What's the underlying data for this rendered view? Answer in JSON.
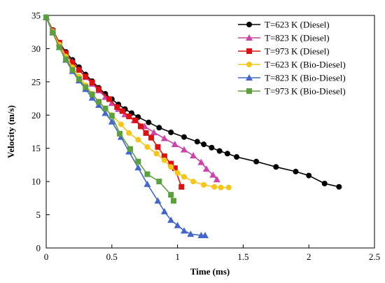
{
  "chart_data": {
    "type": "line",
    "xlabel": "Time (ms)",
    "ylabel": "Velocity (m/s)",
    "xlim": [
      0,
      2.5
    ],
    "ylim": [
      0,
      35
    ],
    "xticks": [
      0,
      0.5,
      1,
      1.5,
      2,
      2.5
    ],
    "xtick_labels": [
      "0",
      "0.5",
      "1",
      "1.5",
      "2",
      "2.5"
    ],
    "yticks": [
      0,
      5,
      10,
      15,
      20,
      25,
      30,
      35
    ],
    "ytick_labels": [
      "0",
      "5",
      "10",
      "15",
      "20",
      "25",
      "30",
      "35"
    ],
    "grid": false,
    "legend_position": "top-right",
    "series": [
      {
        "name": "T=623 K (Diesel)",
        "color": "#000000",
        "marker": "circle",
        "points": [
          [
            0.0,
            34.7
          ],
          [
            0.05,
            32.8
          ],
          [
            0.1,
            30.9
          ],
          [
            0.15,
            29.5
          ],
          [
            0.2,
            28.3
          ],
          [
            0.25,
            27.2
          ],
          [
            0.3,
            26.1
          ],
          [
            0.35,
            25.1
          ],
          [
            0.4,
            24.1
          ],
          [
            0.45,
            23.2
          ],
          [
            0.5,
            22.4
          ],
          [
            0.55,
            21.6
          ],
          [
            0.6,
            20.9
          ],
          [
            0.65,
            20.3
          ],
          [
            0.7,
            19.7
          ],
          [
            0.78,
            18.9
          ],
          [
            0.86,
            18.1
          ],
          [
            0.95,
            17.4
          ],
          [
            1.05,
            16.7
          ],
          [
            1.15,
            16.0
          ],
          [
            1.2,
            15.6
          ],
          [
            1.26,
            15.1
          ],
          [
            1.32,
            14.6
          ],
          [
            1.38,
            14.2
          ],
          [
            1.45,
            13.7
          ],
          [
            1.6,
            13.0
          ],
          [
            1.75,
            12.2
          ],
          [
            1.9,
            11.5
          ],
          [
            2.0,
            10.9
          ],
          [
            2.12,
            9.7
          ],
          [
            2.23,
            9.2
          ]
        ]
      },
      {
        "name": "T=823 K (Diesel)",
        "color": "#cc44aa",
        "marker": "triangle",
        "points": [
          [
            0.0,
            34.7
          ],
          [
            0.05,
            32.7
          ],
          [
            0.1,
            30.8
          ],
          [
            0.15,
            29.3
          ],
          [
            0.2,
            28.0
          ],
          [
            0.25,
            26.8
          ],
          [
            0.3,
            25.7
          ],
          [
            0.35,
            24.7
          ],
          [
            0.4,
            23.7
          ],
          [
            0.45,
            22.7
          ],
          [
            0.5,
            21.8
          ],
          [
            0.55,
            20.9
          ],
          [
            0.6,
            20.1
          ],
          [
            0.67,
            19.2
          ],
          [
            0.75,
            18.3
          ],
          [
            0.82,
            17.4
          ],
          [
            0.9,
            16.5
          ],
          [
            0.98,
            15.6
          ],
          [
            1.05,
            14.8
          ],
          [
            1.12,
            13.9
          ],
          [
            1.18,
            12.9
          ],
          [
            1.22,
            11.9
          ],
          [
            1.27,
            11.0
          ],
          [
            1.3,
            10.3
          ]
        ]
      },
      {
        "name": "T=973 K (Diesel)",
        "color": "#dd1111",
        "marker": "square",
        "points": [
          [
            0.0,
            34.7
          ],
          [
            0.05,
            32.7
          ],
          [
            0.1,
            30.9
          ],
          [
            0.15,
            29.3
          ],
          [
            0.2,
            27.9
          ],
          [
            0.25,
            26.8
          ],
          [
            0.3,
            25.8
          ],
          [
            0.35,
            24.9
          ],
          [
            0.4,
            23.9
          ],
          [
            0.48,
            22.4
          ],
          [
            0.54,
            21.2
          ],
          [
            0.58,
            20.6
          ],
          [
            0.63,
            19.8
          ],
          [
            0.68,
            19.2
          ],
          [
            0.72,
            18.3
          ],
          [
            0.76,
            17.3
          ],
          [
            0.8,
            16.6
          ],
          [
            0.85,
            15.2
          ],
          [
            0.9,
            13.8
          ],
          [
            0.95,
            12.7
          ],
          [
            0.98,
            12.0
          ],
          [
            1.03,
            9.2
          ]
        ]
      },
      {
        "name": "T=623 K (Bio-Diesel)",
        "color": "#f5c518",
        "marker": "circle",
        "points": [
          [
            0.0,
            34.7
          ],
          [
            0.05,
            32.6
          ],
          [
            0.1,
            30.6
          ],
          [
            0.15,
            28.8
          ],
          [
            0.2,
            27.2
          ],
          [
            0.25,
            25.8
          ],
          [
            0.3,
            24.5
          ],
          [
            0.35,
            23.2
          ],
          [
            0.4,
            22.0
          ],
          [
            0.45,
            21.0
          ],
          [
            0.5,
            20.0
          ],
          [
            0.57,
            18.6
          ],
          [
            0.63,
            17.3
          ],
          [
            0.7,
            16.3
          ],
          [
            0.77,
            15.2
          ],
          [
            0.84,
            14.2
          ],
          [
            0.9,
            13.2
          ],
          [
            0.95,
            12.2
          ],
          [
            1.0,
            11.3
          ],
          [
            1.05,
            10.7
          ],
          [
            1.12,
            10.0
          ],
          [
            1.2,
            9.5
          ],
          [
            1.28,
            9.2
          ],
          [
            1.33,
            9.1
          ],
          [
            1.39,
            9.1
          ]
        ]
      },
      {
        "name": "T=823 K (Bio-Diesel)",
        "color": "#4466cc",
        "marker": "triangle",
        "points": [
          [
            0.0,
            34.7
          ],
          [
            0.05,
            32.4
          ],
          [
            0.1,
            30.2
          ],
          [
            0.15,
            28.3
          ],
          [
            0.2,
            26.6
          ],
          [
            0.25,
            25.2
          ],
          [
            0.3,
            23.9
          ],
          [
            0.35,
            22.6
          ],
          [
            0.4,
            21.5
          ],
          [
            0.45,
            20.3
          ],
          [
            0.5,
            19.0
          ],
          [
            0.57,
            16.7
          ],
          [
            0.63,
            14.5
          ],
          [
            0.7,
            12.1
          ],
          [
            0.77,
            9.6
          ],
          [
            0.85,
            7.1
          ],
          [
            0.9,
            5.5
          ],
          [
            0.95,
            4.2
          ],
          [
            1.0,
            3.4
          ],
          [
            1.05,
            2.6
          ],
          [
            1.1,
            2.1
          ],
          [
            1.18,
            1.9
          ],
          [
            1.21,
            1.9
          ]
        ]
      },
      {
        "name": "T=973 K (Bio-Diesel)",
        "color": "#5aa03c",
        "marker": "square",
        "points": [
          [
            0.0,
            34.7
          ],
          [
            0.05,
            32.4
          ],
          [
            0.1,
            30.2
          ],
          [
            0.15,
            28.4
          ],
          [
            0.2,
            26.8
          ],
          [
            0.25,
            25.4
          ],
          [
            0.3,
            24.2
          ],
          [
            0.35,
            23.1
          ],
          [
            0.4,
            22.0
          ],
          [
            0.45,
            21.0
          ],
          [
            0.5,
            19.9
          ],
          [
            0.56,
            17.2
          ],
          [
            0.64,
            14.9
          ],
          [
            0.7,
            13.0
          ],
          [
            0.77,
            11.1
          ],
          [
            0.86,
            10.0
          ],
          [
            0.95,
            8.0
          ],
          [
            0.97,
            7.1
          ]
        ]
      }
    ]
  }
}
